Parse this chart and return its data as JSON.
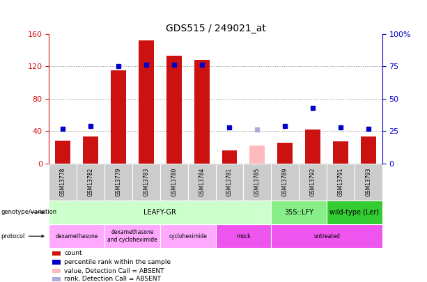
{
  "title": "GDS515 / 249021_at",
  "samples": [
    "GSM13778",
    "GSM13782",
    "GSM13779",
    "GSM13783",
    "GSM13780",
    "GSM13784",
    "GSM13781",
    "GSM13785",
    "GSM13789",
    "GSM13792",
    "GSM13791",
    "GSM13793"
  ],
  "counts": [
    28,
    33,
    115,
    152,
    133,
    128,
    16,
    22,
    26,
    42,
    27,
    33
  ],
  "ranks": [
    27,
    29,
    75,
    76,
    76,
    76,
    28,
    26,
    29,
    43,
    28,
    27
  ],
  "absent_count_idx": [
    7
  ],
  "absent_rank_idx": [
    7
  ],
  "ylim_left": [
    0,
    160
  ],
  "ylim_right": [
    0,
    100
  ],
  "yticks_left": [
    0,
    40,
    80,
    120,
    160
  ],
  "yticks_right": [
    0,
    25,
    50,
    75,
    100
  ],
  "ytick_labels_right": [
    "0",
    "25",
    "50",
    "75",
    "100%"
  ],
  "bar_color": "#cc1111",
  "absent_bar_color": "#ffbbbb",
  "rank_color": "#0000cc",
  "absent_rank_color": "#aaaadd",
  "bg_color": "#ffffff",
  "grid_color": "#888888",
  "genotype_groups": [
    {
      "label": "LEAFY-GR",
      "start": 0,
      "end": 8,
      "color": "#ccffcc"
    },
    {
      "label": "35S::LFY",
      "start": 8,
      "end": 10,
      "color": "#88ee88"
    },
    {
      "label": "wild-type (Ler)",
      "start": 10,
      "end": 12,
      "color": "#33cc33"
    }
  ],
  "protocol_groups": [
    {
      "label": "dexamethasone",
      "start": 0,
      "end": 2,
      "color": "#ffaaff"
    },
    {
      "label": "dexamethasone\nand cycloheximide",
      "start": 2,
      "end": 4,
      "color": "#ffaaff"
    },
    {
      "label": "cycloheximide",
      "start": 4,
      "end": 6,
      "color": "#ffaaff"
    },
    {
      "label": "mock",
      "start": 6,
      "end": 8,
      "color": "#ee55ee"
    },
    {
      "label": "untreated",
      "start": 8,
      "end": 12,
      "color": "#ee55ee"
    }
  ],
  "legend_items": [
    {
      "label": "count",
      "color": "#cc1111"
    },
    {
      "label": "percentile rank within the sample",
      "color": "#0000cc"
    },
    {
      "label": "value, Detection Call = ABSENT",
      "color": "#ffbbbb"
    },
    {
      "label": "rank, Detection Call = ABSENT",
      "color": "#aaaadd"
    }
  ],
  "sample_bg_color": "#cccccc"
}
